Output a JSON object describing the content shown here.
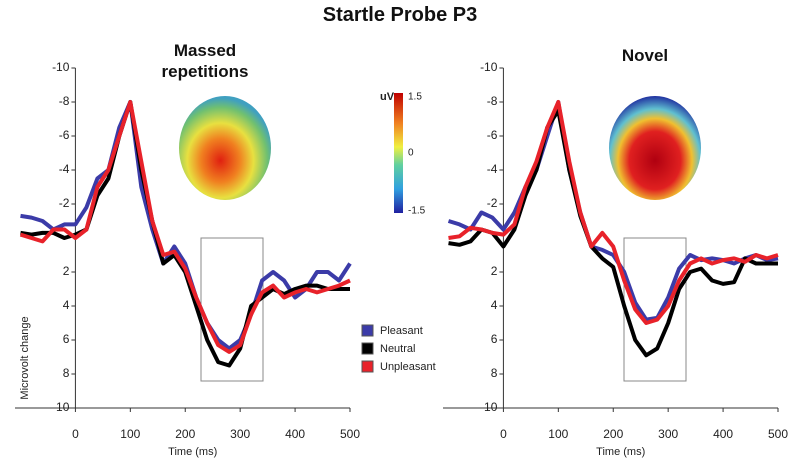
{
  "title": "Startle Probe P3",
  "colorbar": {
    "label": "uV",
    "ticks": [
      1.5,
      0,
      -1.5
    ]
  },
  "chart_data": [
    {
      "type": "line",
      "title": "Massed repetitions",
      "xlabel": "Time (ms)",
      "ylabel": "Microvolt change",
      "xlim": [
        -110,
        500
      ],
      "xticks": [
        0,
        100,
        200,
        300,
        400,
        500
      ],
      "ylim": [
        -10,
        10
      ],
      "yticks": [
        -10,
        -8,
        -6,
        -4,
        -2,
        2,
        4,
        6,
        8,
        10
      ],
      "y_inverted": true,
      "x": [
        -100,
        -80,
        -60,
        -40,
        -20,
        0,
        20,
        40,
        60,
        80,
        100,
        120,
        140,
        160,
        180,
        200,
        220,
        240,
        260,
        280,
        300,
        320,
        340,
        360,
        380,
        400,
        420,
        440,
        460,
        480,
        500
      ],
      "series": [
        {
          "name": "Pleasant",
          "color": "#3b3ba8",
          "values": [
            -1.3,
            -1.2,
            -1.0,
            -0.5,
            -0.8,
            -0.8,
            -1.8,
            -3.5,
            -4.0,
            -6.5,
            -8.0,
            -3.0,
            -0.5,
            1.5,
            0.5,
            1.5,
            3.5,
            5.0,
            6.0,
            6.5,
            6.0,
            4.5,
            2.5,
            2.0,
            2.5,
            3.5,
            3.0,
            2.0,
            2.0,
            2.5,
            1.5
          ]
        },
        {
          "name": "Neutral",
          "color": "#000000",
          "values": [
            -0.3,
            -0.2,
            -0.3,
            -0.3,
            0,
            -0.2,
            -0.5,
            -2.5,
            -3.5,
            -6.0,
            -8.0,
            -4.0,
            -1.0,
            1.5,
            1.0,
            2.0,
            4.0,
            6.0,
            7.3,
            7.5,
            6.5,
            4.0,
            3.5,
            3.0,
            3.3,
            3.0,
            2.8,
            2.8,
            3.0,
            3.0,
            3.0
          ]
        },
        {
          "name": "Unpleasant",
          "color": "#e8222a",
          "values": [
            -0.2,
            0,
            0.2,
            -0.5,
            -0.5,
            0,
            -0.5,
            -3.0,
            -4.0,
            -6.0,
            -8.0,
            -4.5,
            -1.0,
            1.0,
            0.8,
            1.8,
            3.5,
            5.0,
            6.3,
            6.7,
            6.3,
            4.5,
            3.2,
            2.8,
            3.5,
            3.2,
            3.0,
            3.2,
            3.0,
            2.8,
            2.5
          ]
        }
      ]
    },
    {
      "type": "line",
      "title": "Novel",
      "xlabel": "Time (ms)",
      "xlim": [
        -110,
        500
      ],
      "xticks": [
        0,
        100,
        200,
        300,
        400,
        500
      ],
      "ylim": [
        -10,
        10
      ],
      "yticks": [
        -10,
        -8,
        -6,
        -4,
        -2,
        2,
        4,
        6,
        8,
        10
      ],
      "y_inverted": true,
      "x": [
        -100,
        -80,
        -60,
        -40,
        -20,
        0,
        20,
        40,
        60,
        80,
        100,
        120,
        140,
        160,
        180,
        200,
        220,
        240,
        260,
        280,
        300,
        320,
        340,
        360,
        380,
        400,
        420,
        440,
        460,
        480,
        500
      ],
      "series": [
        {
          "name": "Pleasant",
          "color": "#3b3ba8",
          "values": [
            -1.0,
            -0.8,
            -0.5,
            -1.5,
            -1.2,
            -0.5,
            -1.5,
            -3.0,
            -4.0,
            -6.0,
            -8.0,
            -4.0,
            -1.5,
            0.5,
            0.7,
            1.0,
            2.0,
            3.8,
            4.8,
            4.7,
            3.5,
            1.8,
            1.0,
            1.3,
            1.2,
            1.3,
            1.5,
            1.2,
            1.0,
            1.3,
            1.2
          ]
        },
        {
          "name": "Neutral",
          "color": "#000000",
          "values": [
            0.3,
            0.4,
            0.2,
            -0.5,
            -0.3,
            0.5,
            -0.5,
            -2.5,
            -4.0,
            -6.5,
            -7.5,
            -4.0,
            -1.3,
            0.5,
            1.2,
            1.7,
            4.0,
            6.0,
            6.9,
            6.5,
            5.0,
            3.0,
            2.0,
            1.8,
            2.5,
            2.7,
            2.6,
            1.2,
            1.5,
            1.5,
            1.5
          ]
        },
        {
          "name": "Unpleasant",
          "color": "#e8222a",
          "values": [
            0,
            -0.1,
            -0.6,
            -0.5,
            -0.3,
            -0.2,
            -0.8,
            -3.0,
            -4.5,
            -6.5,
            -8.0,
            -4.5,
            -1.5,
            0.5,
            -0.3,
            0.5,
            2.5,
            4.2,
            5.0,
            4.8,
            4.0,
            2.5,
            1.5,
            1.2,
            1.5,
            1.3,
            1.2,
            1.4,
            1.0,
            1.2,
            1.0
          ]
        }
      ]
    }
  ]
}
